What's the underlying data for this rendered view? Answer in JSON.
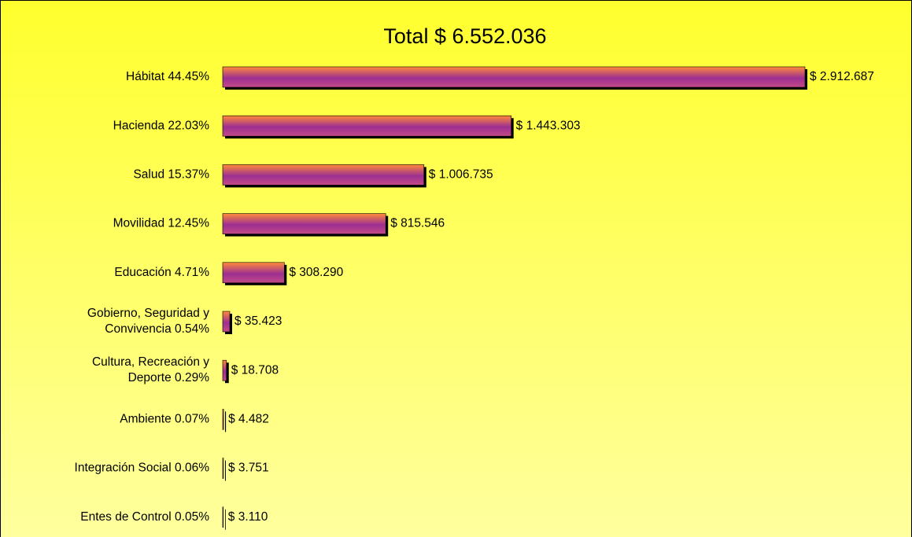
{
  "chart_data": {
    "type": "bar",
    "orientation": "horizontal",
    "title": "Total $ 6.552.036",
    "categories": [
      "Hábitat 44.45%",
      "Hacienda 22.03%",
      "Salud 15.37%",
      "Movilidad 12.45%",
      "Educación 4.71%",
      "Gobierno, Seguridad y\nConvivencia  0.54%",
      "Cultura, Recreación y\nDeporte 0.29%",
      "Ambiente 0.07%",
      "Integración Social 0.06%",
      "Entes de Control 0.05%"
    ],
    "values": [
      2912687,
      1443303,
      1006735,
      815546,
      308290,
      35423,
      18708,
      4482,
      3751,
      3110
    ],
    "value_labels": [
      "$ 2.912.687",
      "$ 1.443.303",
      "$ 1.006.735",
      "$ 815.546",
      "$ 308.290",
      "$ 35.423",
      "$ 18.708",
      "$ 4.482",
      "$ 3.751",
      "$ 3.110"
    ],
    "color": "#b03a8c"
  }
}
